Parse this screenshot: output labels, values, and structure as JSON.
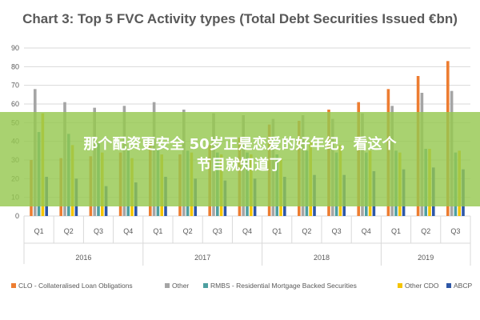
{
  "chart_data": {
    "type": "bar",
    "title": "Chart 3: Top 5 FVC Activity types (Total Debt Securities Issued €bn)",
    "ylim": [
      0,
      90
    ],
    "yticks": [
      0,
      10,
      20,
      30,
      40,
      50,
      60,
      70,
      80,
      90
    ],
    "grid": true,
    "legend_position": "bottom",
    "categories": [
      "Q1",
      "Q2",
      "Q3",
      "Q4",
      "Q1",
      "Q2",
      "Q3",
      "Q4",
      "Q1",
      "Q2",
      "Q3",
      "Q4",
      "Q1",
      "Q2",
      "Q3"
    ],
    "year_groups": [
      {
        "label": "2016",
        "count": 4
      },
      {
        "label": "2017",
        "count": 4
      },
      {
        "label": "2018",
        "count": 4
      },
      {
        "label": "2019",
        "count": 3
      }
    ],
    "series": [
      {
        "name": "CLO - Collateralised Loan Obligations",
        "color": "#ED7D31",
        "values": [
          30,
          31,
          32,
          34,
          39,
          33,
          38,
          42,
          49,
          51,
          57,
          61,
          68,
          75,
          83
        ]
      },
      {
        "name": "Other",
        "color": "#A5A5A5",
        "values": [
          68,
          61,
          58,
          59,
          61,
          57,
          55,
          54,
          52,
          54,
          52,
          55,
          59,
          66,
          67
        ]
      },
      {
        "name": "RMBS - Residential Mortgage Backed Securities",
        "color": "#4E9FA0",
        "values": [
          45,
          44,
          39,
          35,
          36,
          35,
          34,
          34,
          33,
          35,
          34,
          34,
          35,
          36,
          34
        ]
      },
      {
        "name": "Other CDO",
        "color": "#F5C400",
        "values": [
          55,
          38,
          34,
          31,
          33,
          34,
          33,
          33,
          31,
          40,
          38,
          35,
          34,
          36,
          35
        ]
      },
      {
        "name": "ABCP",
        "color": "#2E57A6",
        "values": [
          21,
          20,
          16,
          18,
          21,
          20,
          19,
          20,
          21,
          22,
          22,
          24,
          25,
          26,
          25
        ]
      }
    ]
  },
  "overlay": {
    "line1": "那个配资更安全 50岁正是恋爱的好年纪，看这个",
    "line2": "节目就知道了"
  }
}
